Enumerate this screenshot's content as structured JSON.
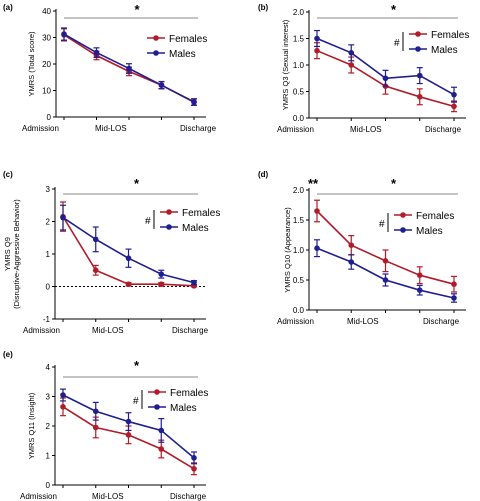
{
  "colors": {
    "females": "#b01c2a",
    "males": "#1f1f8f",
    "sig_line": "#8a8a8a",
    "axis": "#000000"
  },
  "chart_data": [
    {
      "type": "line",
      "panel_label": "(a)",
      "ylabel": "YMRS (Total score)",
      "categories": [
        "Admission",
        "",
        "Mid-LOS",
        "",
        "Discharge"
      ],
      "ylim": [
        0,
        40
      ],
      "yticks": [
        "0",
        "10",
        "20",
        "30",
        "40"
      ],
      "series": [
        {
          "name": "Females",
          "values": [
            31,
            23.2,
            17.2,
            12,
            5.7
          ],
          "errors": [
            2.3,
            1.6,
            1.6,
            1.4,
            1.2
          ]
        },
        {
          "name": "Males",
          "values": [
            31.3,
            24.3,
            18.3,
            12,
            5.6
          ],
          "errors": [
            2.3,
            1.8,
            1.8,
            1.3,
            1.2
          ]
        }
      ],
      "annotations": {
        "main": "*",
        "group": "",
        "admission": ""
      },
      "legend": "right"
    },
    {
      "type": "line",
      "panel_label": "(b)",
      "ylabel": "YMRS Q3 (Sexual interest)",
      "categories": [
        "Admission",
        "",
        "Mid-LOS",
        "",
        "Discharge"
      ],
      "ylim": [
        0,
        2.0
      ],
      "yticks": [
        "0.0",
        "0.5",
        "1.0",
        "1.5",
        "2.0"
      ],
      "series": [
        {
          "name": "Females",
          "values": [
            1.27,
            1.0,
            0.6,
            0.4,
            0.22
          ],
          "errors": [
            0.15,
            0.15,
            0.15,
            0.15,
            0.1
          ]
        },
        {
          "name": "Males",
          "values": [
            1.5,
            1.23,
            0.75,
            0.8,
            0.44
          ],
          "errors": [
            0.15,
            0.15,
            0.15,
            0.15,
            0.14
          ]
        }
      ],
      "annotations": {
        "main": "*",
        "group": "#",
        "admission": ""
      },
      "legend": "right"
    },
    {
      "type": "line",
      "panel_label": "(c)",
      "ylabel": "YMRS Q9",
      "ylabel2": "(Disruptive-Aggressive Behavior)",
      "categories": [
        "Admission",
        "",
        "Mid-LOS",
        "",
        "Discharge"
      ],
      "ylim": [
        -1,
        3
      ],
      "yticks": [
        "-1",
        "0",
        "1",
        "2",
        "3"
      ],
      "series": [
        {
          "name": "Females",
          "values": [
            2.15,
            0.5,
            0.07,
            0.07,
            0.02
          ],
          "errors": [
            0.45,
            0.15,
            0.05,
            0.05,
            0.03
          ]
        },
        {
          "name": "Males",
          "values": [
            2.12,
            1.45,
            0.87,
            0.38,
            0.12
          ],
          "errors": [
            0.38,
            0.38,
            0.28,
            0.12,
            0.06
          ]
        }
      ],
      "annotations": {
        "main": "*",
        "group": "#",
        "admission": ""
      },
      "legend": "right"
    },
    {
      "type": "line",
      "panel_label": "(d)",
      "ylabel": "YMRS Q10 (Appearance)",
      "categories": [
        "Admission",
        "",
        "Mid-LOS",
        "",
        "Discharge"
      ],
      "ylim": [
        0,
        2.0
      ],
      "yticks": [
        "0.0",
        "0.5",
        "1.0",
        "1.5",
        "2.0"
      ],
      "series": [
        {
          "name": "Females",
          "values": [
            1.65,
            1.08,
            0.82,
            0.58,
            0.43
          ],
          "errors": [
            0.18,
            0.16,
            0.18,
            0.14,
            0.13
          ]
        },
        {
          "name": "Males",
          "values": [
            1.03,
            0.8,
            0.5,
            0.33,
            0.2
          ],
          "errors": [
            0.14,
            0.12,
            0.1,
            0.08,
            0.07
          ]
        }
      ],
      "annotations": {
        "main": "*",
        "group": "#",
        "admission": "**"
      },
      "legend": "right"
    },
    {
      "type": "line",
      "panel_label": "(e)",
      "ylabel": "YMRS Q11 (Insight)",
      "categories": [
        "Admission",
        "",
        "Mid-LOS",
        "",
        "Discharge"
      ],
      "ylim": [
        0,
        4
      ],
      "yticks": [
        "0",
        "1",
        "2",
        "3",
        "4"
      ],
      "series": [
        {
          "name": "Females",
          "values": [
            2.65,
            1.95,
            1.7,
            1.22,
            0.55
          ],
          "errors": [
            0.3,
            0.35,
            0.3,
            0.3,
            0.2
          ]
        },
        {
          "name": "Males",
          "values": [
            3.05,
            2.5,
            2.15,
            1.85,
            0.92
          ],
          "errors": [
            0.2,
            0.3,
            0.3,
            0.4,
            0.2
          ]
        }
      ],
      "annotations": {
        "main": "*",
        "group": "#",
        "admission": ""
      },
      "legend": "right"
    }
  ]
}
